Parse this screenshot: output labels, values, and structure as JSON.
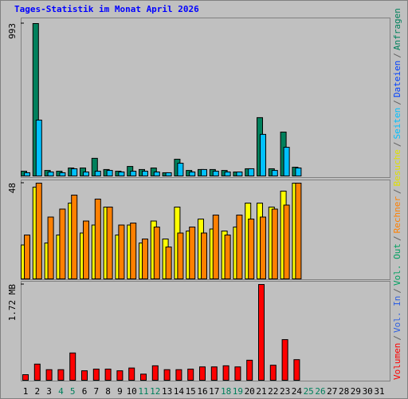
{
  "title": "Tages-Statistik im Monat April 2026",
  "legend_separator": "/",
  "legend": [
    {
      "label": "Volumen",
      "color": "#ff0000"
    },
    {
      "label": "Vol. In",
      "color": "#3060e0"
    },
    {
      "label": "Vol. Out",
      "color": "#00a060"
    },
    {
      "label": "Rechner",
      "color": "#ff8000"
    },
    {
      "label": "Besuche",
      "color": "#e0e000"
    },
    {
      "label": "Seiten",
      "color": "#00c0ff"
    },
    {
      "label": "Dateien",
      "color": "#0040ff"
    },
    {
      "label": "Anfragen",
      "color": "#00805c"
    }
  ],
  "chart_data": [
    {
      "type": "bar",
      "ylim": [
        0,
        993
      ],
      "yticks": [
        993
      ],
      "series": [
        {
          "color": "#00805c",
          "values": [
            31,
            993,
            36,
            31,
            52,
            52,
            115,
            42,
            31,
            62,
            42,
            52,
            21,
            109,
            36,
            42,
            42,
            36,
            26,
            47,
            380,
            47,
            286,
            57,
            null,
            null,
            null,
            null,
            null,
            null,
            null
          ]
        },
        {
          "color": "#00c0ff",
          "values": [
            21,
            364,
            26,
            21,
            47,
            26,
            31,
            36,
            26,
            31,
            31,
            26,
            21,
            83,
            26,
            42,
            31,
            26,
            26,
            47,
            271,
            36,
            187,
            52,
            null,
            null,
            null,
            null,
            null,
            null,
            null
          ]
        }
      ]
    },
    {
      "type": "bar",
      "ylim": [
        0,
        48
      ],
      "yticks": [
        48
      ],
      "series": [
        {
          "color": "#ffff00",
          "values": [
            17,
            46,
            18,
            22,
            38,
            23,
            27,
            36,
            22,
            27,
            18,
            29,
            20,
            36,
            24,
            30,
            25,
            24,
            26,
            38,
            38,
            36,
            44,
            48,
            null,
            null,
            null,
            null,
            null,
            null,
            null
          ]
        },
        {
          "color": "#ff8000",
          "values": [
            22,
            48,
            31,
            35,
            42,
            29,
            40,
            36,
            27,
            28,
            20,
            26,
            16,
            23,
            26,
            23,
            32,
            22,
            32,
            30,
            31,
            35,
            37,
            48,
            null,
            null,
            null,
            null,
            null,
            null,
            null
          ]
        }
      ]
    },
    {
      "type": "bar",
      "ylim": [
        0,
        1.72
      ],
      "yticks": [
        {
          "value": 1.72,
          "label": "1.72 MB"
        }
      ],
      "categories": [
        "1",
        "2",
        "3",
        "4",
        "5",
        "6",
        "7",
        "8",
        "9",
        "10",
        "11",
        "12",
        "13",
        "14",
        "15",
        "16",
        "17",
        "18",
        "19",
        "20",
        "21",
        "22",
        "23",
        "24",
        "25",
        "26",
        "27",
        "28",
        "29",
        "30",
        "31"
      ],
      "category_colors": [
        "#000000",
        "#000000",
        "#000000",
        "#00805c",
        "#00805c",
        "#000000",
        "#000000",
        "#000000",
        "#000000",
        "#000000",
        "#00805c",
        "#00805c",
        "#000000",
        "#000000",
        "#000000",
        "#000000",
        "#000000",
        "#00805c",
        "#00805c",
        "#000000",
        "#000000",
        "#000000",
        "#000000",
        "#000000",
        "#00805c",
        "#00805c",
        "#000000",
        "#000000",
        "#000000",
        "#000000",
        "#000000"
      ],
      "series": [
        {
          "color": "#ff0000",
          "values": [
            0.1,
            0.29,
            0.19,
            0.19,
            0.49,
            0.17,
            0.2,
            0.2,
            0.17,
            0.22,
            0.11,
            0.26,
            0.19,
            0.19,
            0.2,
            0.24,
            0.24,
            0.26,
            0.24,
            0.36,
            1.72,
            0.27,
            0.73,
            0.37,
            null,
            null,
            null,
            null,
            null,
            null,
            null
          ]
        }
      ]
    }
  ]
}
